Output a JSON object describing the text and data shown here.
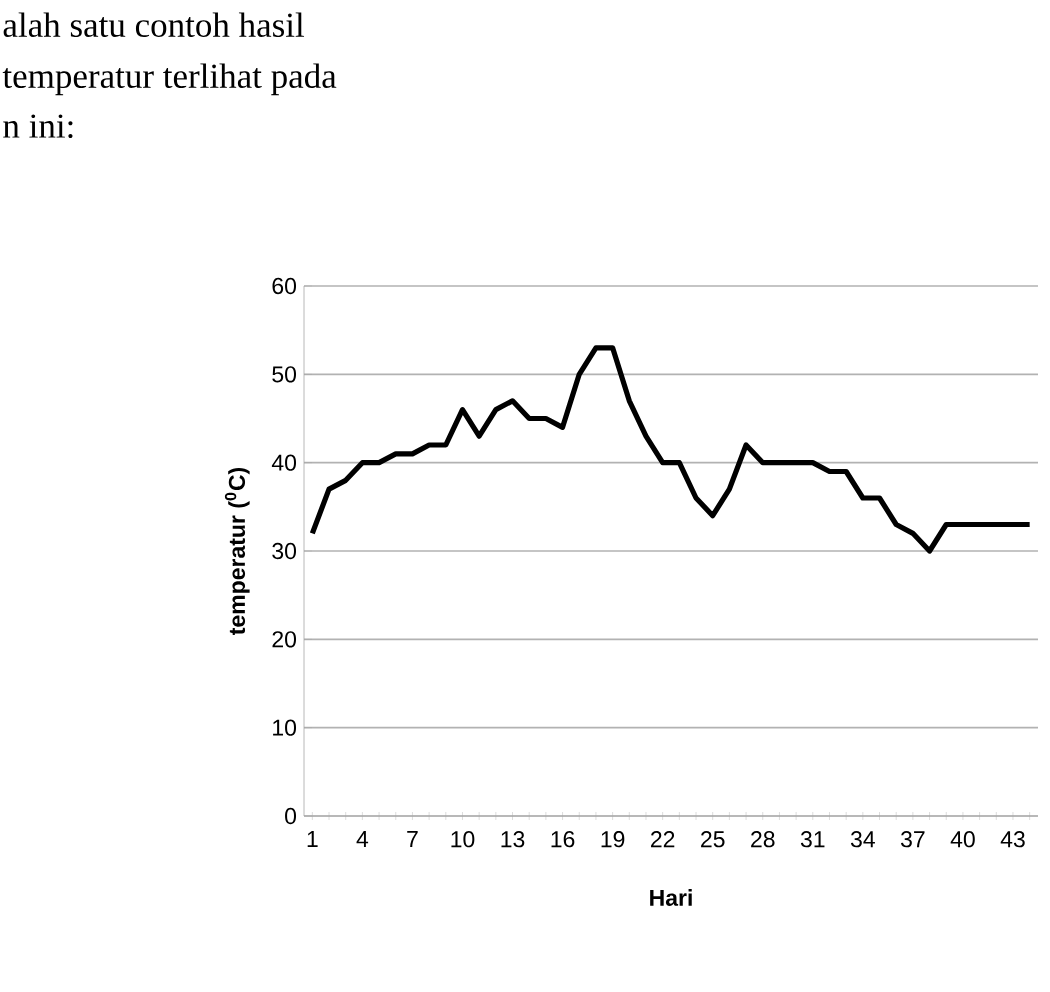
{
  "chart_data": {
    "type": "line",
    "xlabel": "Hari",
    "ylabel": "temperatur ($^{0}$C)",
    "categories": [
      "1",
      null,
      null,
      "4",
      null,
      null,
      "7",
      null,
      null,
      "10",
      null,
      null,
      "13",
      null,
      null,
      "16",
      null,
      null,
      "19",
      null,
      null,
      "22",
      null,
      null,
      "25",
      null,
      null,
      "28",
      null,
      null,
      "31",
      null,
      null,
      "34",
      null,
      null,
      "37",
      null,
      null,
      "40",
      null,
      null,
      "43",
      null
    ],
    "series": [
      {
        "color": "#000000",
        "values": [
          32,
          37,
          38,
          40,
          40,
          41,
          41,
          42,
          42,
          46,
          43,
          46,
          47,
          45,
          45,
          44,
          50,
          53,
          53,
          47,
          43,
          40,
          40,
          36,
          34,
          37,
          42,
          40,
          40,
          40,
          40,
          39,
          39,
          36,
          36,
          33,
          32,
          30,
          33,
          33,
          33,
          33,
          33,
          33
        ]
      }
    ],
    "ylim": [
      0,
      60
    ],
    "yticks": [
      0,
      10,
      20,
      30,
      40,
      50,
      60
    ],
    "grid": "y",
    "marker": "none",
    "line_style": "solid",
    "legend": false,
    "annotations": [
      "alah satu contoh hasil",
      "temperatur terlihat pada",
      "n ini:"
    ]
  }
}
